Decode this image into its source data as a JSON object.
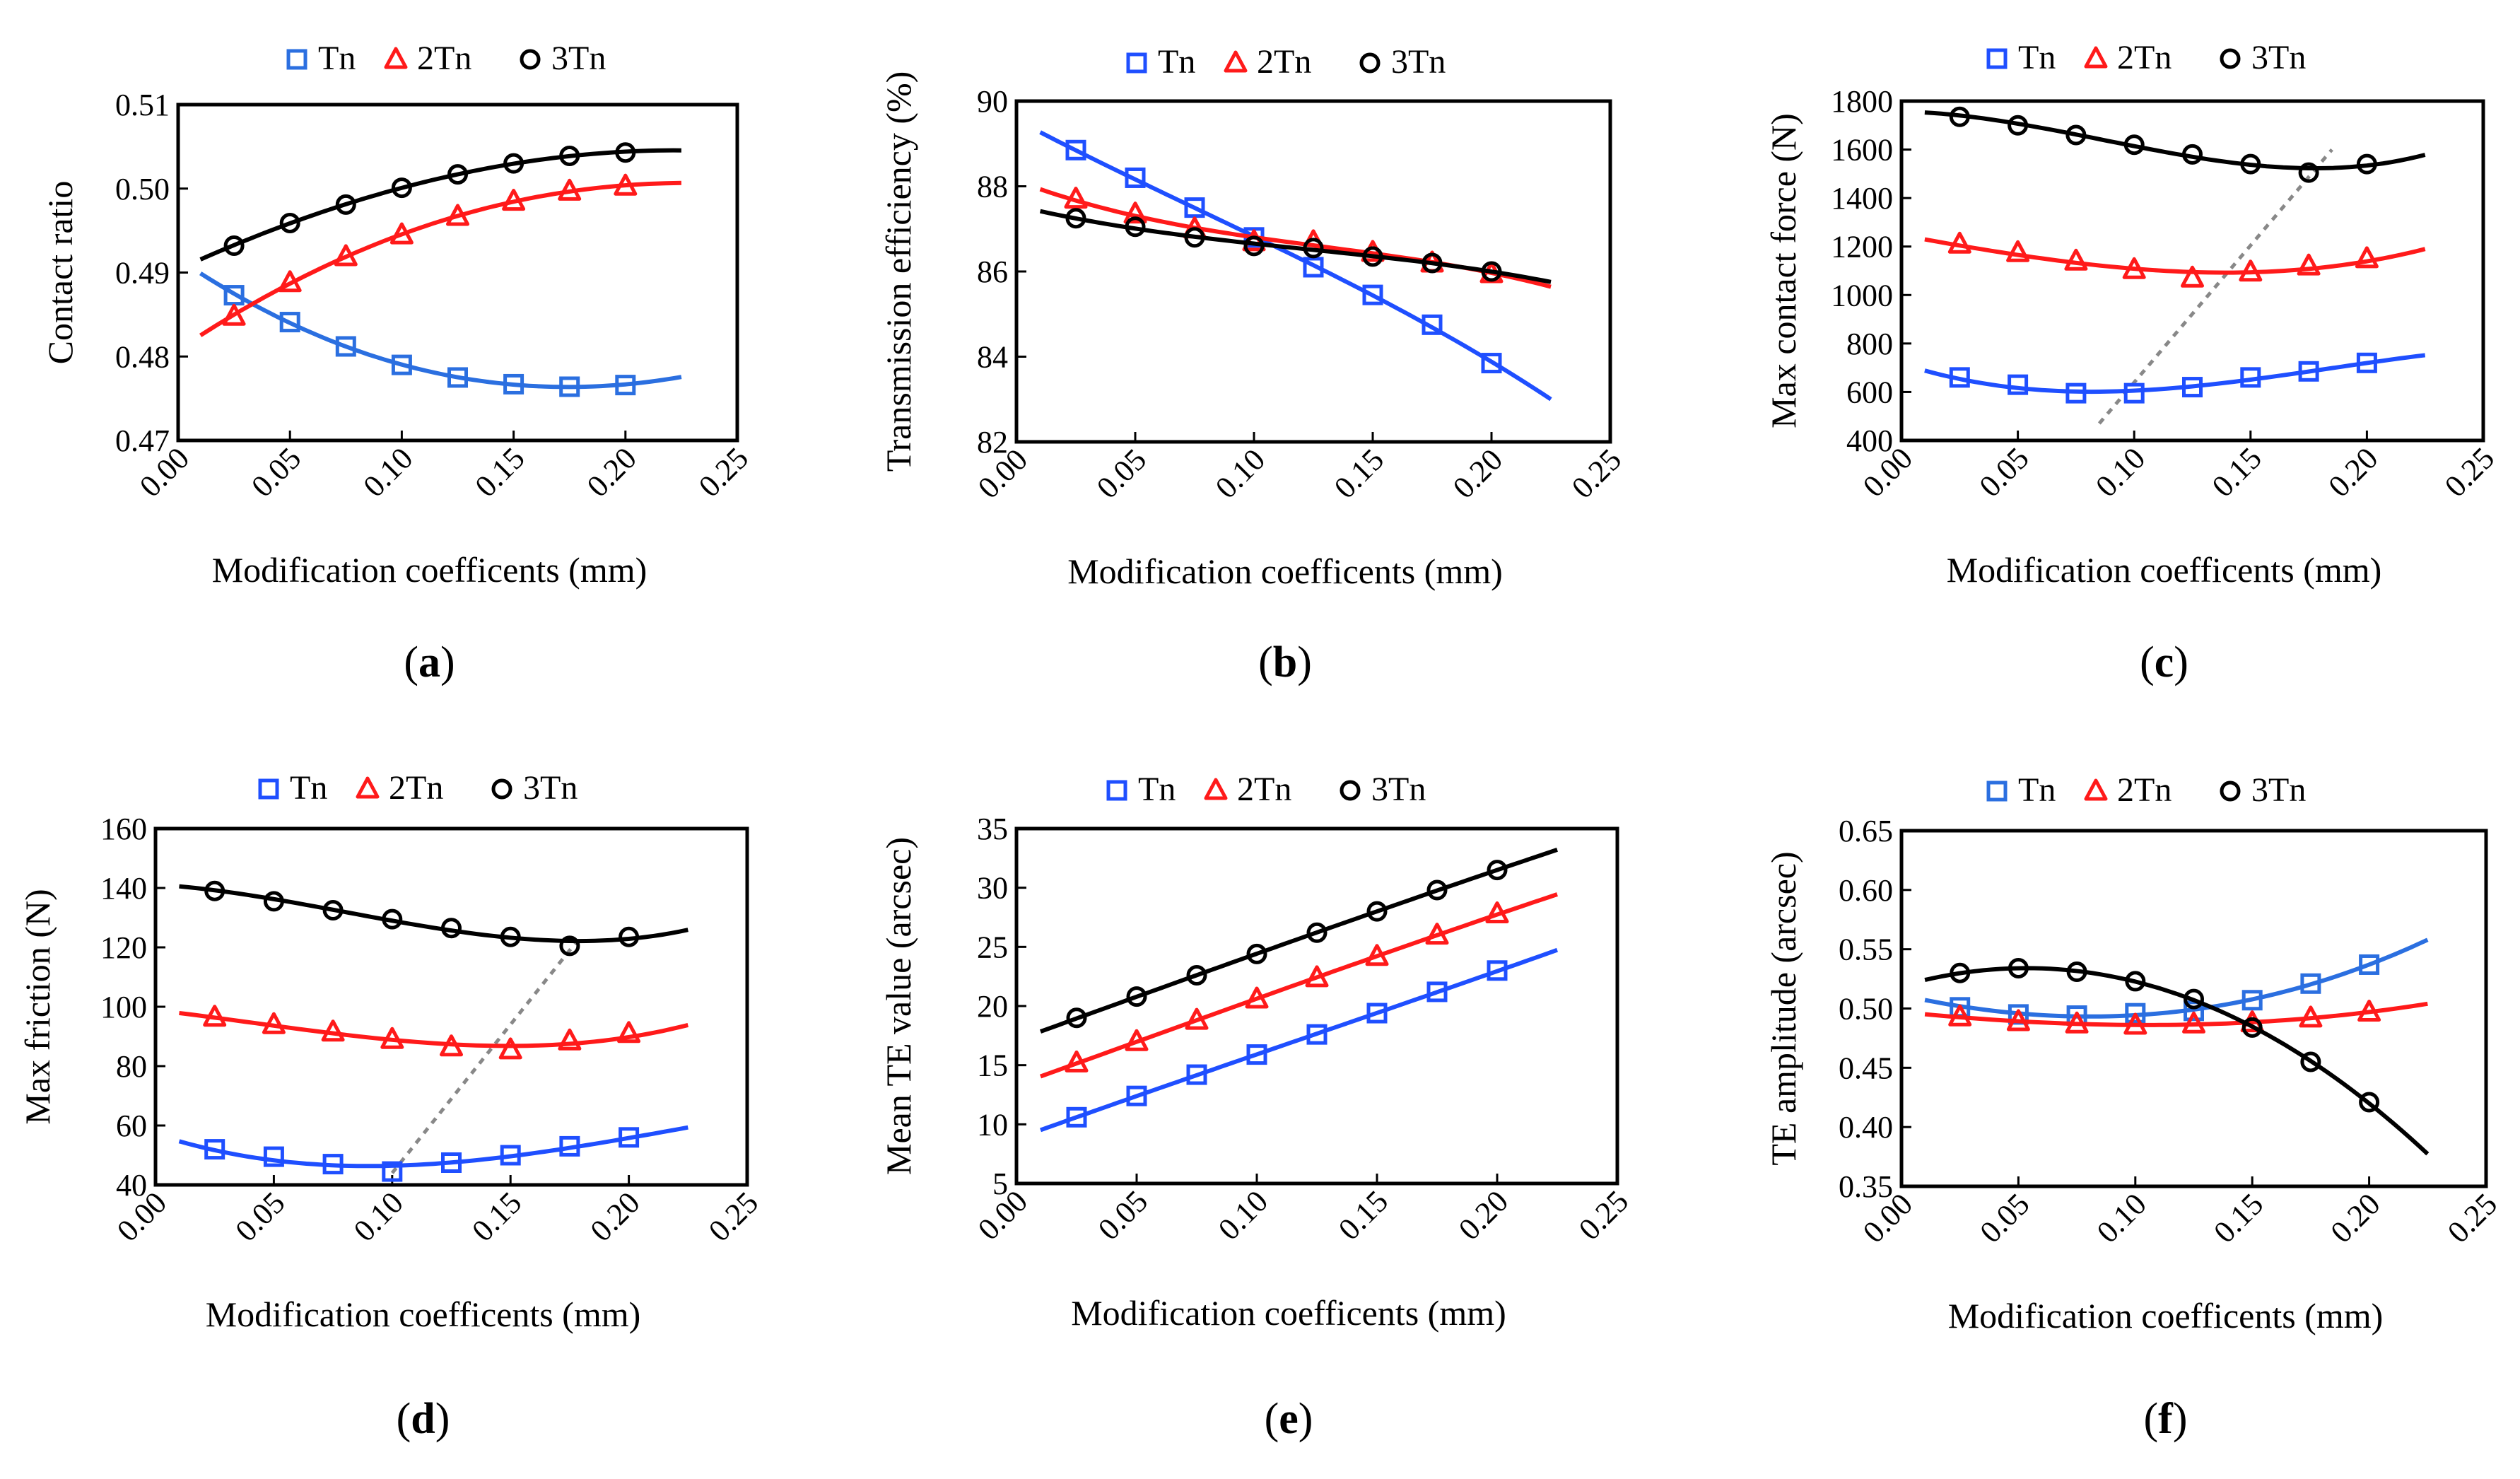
{
  "colors": {
    "Tn": "#1f4fff",
    "Tn_alt": "#2b6fe0",
    "2Tn": "#ff1a1a",
    "3Tn": "#000000",
    "guide": "#888888"
  },
  "legend": [
    "Tn",
    "2Tn",
    "3Tn"
  ],
  "chart_data": [
    {
      "id": "a",
      "label": "(a)",
      "type": "line",
      "xlabel": "Modification coefficents (mm)",
      "ylabel": "Contact ratio",
      "xlim": [
        0,
        0.25
      ],
      "ylim": [
        0.47,
        0.51
      ],
      "xticks": [
        "0.00",
        "0.05",
        "0.10",
        "0.15",
        "0.20",
        "0.25"
      ],
      "yticks": [
        "0.47",
        "0.48",
        "0.49",
        "0.50",
        "0.51"
      ],
      "series": [
        {
          "name": "Tn",
          "color_key": "Tn_alt",
          "marker": "square",
          "x": [
            0.025,
            0.05,
            0.075,
            0.1,
            0.125,
            0.15,
            0.175,
            0.2
          ],
          "values": [
            0.4873,
            0.4841,
            0.4812,
            0.479,
            0.4775,
            0.4767,
            0.4764,
            0.4766
          ],
          "curve_x": [
            0.01,
            0.225
          ],
          "curve": [
            0.49,
            0.4776
          ]
        },
        {
          "name": "2Tn",
          "color_key": "2Tn",
          "marker": "triangle",
          "x": [
            0.025,
            0.05,
            0.075,
            0.1,
            0.125,
            0.15,
            0.175,
            0.2
          ],
          "values": [
            0.4848,
            0.4888,
            0.4919,
            0.4945,
            0.4967,
            0.4985,
            0.4997,
            0.5003
          ],
          "curve_x": [
            0.01,
            0.225
          ],
          "curve": [
            0.4826,
            0.5007
          ]
        },
        {
          "name": "3Tn",
          "color_key": "3Tn",
          "marker": "circle",
          "x": [
            0.025,
            0.05,
            0.075,
            0.1,
            0.125,
            0.15,
            0.175,
            0.2
          ],
          "values": [
            0.4932,
            0.4959,
            0.4981,
            0.5001,
            0.5017,
            0.503,
            0.5039,
            0.5043
          ],
          "curve_x": [
            0.01,
            0.225
          ],
          "curve": [
            0.4916,
            0.5046
          ]
        }
      ]
    },
    {
      "id": "b",
      "label": "(b)",
      "type": "line",
      "xlabel": "Modification coefficents (mm)",
      "ylabel": "Transmission efficiency (%)",
      "xlim": [
        0,
        0.25
      ],
      "ylim": [
        82,
        90
      ],
      "xticks": [
        "0.00",
        "0.05",
        "0.10",
        "0.15",
        "0.20",
        "0.25"
      ],
      "yticks": [
        "82",
        "84",
        "86",
        "88",
        "90"
      ],
      "series": [
        {
          "name": "Tn",
          "color_key": "Tn",
          "marker": "square",
          "x": [
            0.025,
            0.05,
            0.075,
            0.1,
            0.125,
            0.15,
            0.175,
            0.2
          ],
          "values": [
            88.85,
            88.2,
            87.5,
            86.8,
            86.1,
            85.45,
            84.75,
            83.85
          ],
          "curve_x": [
            0.01,
            0.225
          ],
          "curve": [
            89.25,
            83.0
          ]
        },
        {
          "name": "2Tn",
          "color_key": "2Tn",
          "marker": "triangle",
          "x": [
            0.025,
            0.05,
            0.075,
            0.1,
            0.125,
            0.15,
            0.175,
            0.2
          ],
          "values": [
            87.7,
            87.35,
            87.0,
            86.7,
            86.7,
            86.45,
            86.2,
            85.95
          ],
          "curve_x": [
            0.01,
            0.225
          ],
          "curve": [
            87.9,
            85.65
          ]
        },
        {
          "name": "3Tn",
          "color_key": "3Tn",
          "marker": "circle",
          "x": [
            0.025,
            0.05,
            0.075,
            0.1,
            0.125,
            0.15,
            0.175,
            0.2
          ],
          "values": [
            87.25,
            87.05,
            86.8,
            86.6,
            86.55,
            86.35,
            86.2,
            86.0
          ],
          "curve_x": [
            0.01,
            0.225
          ],
          "curve": [
            87.4,
            85.75
          ]
        }
      ]
    },
    {
      "id": "c",
      "label": "(c)",
      "type": "line",
      "xlabel": "Modification coefficents (mm)",
      "ylabel": "Max contact force (N)",
      "xlim": [
        0,
        0.25
      ],
      "ylim": [
        400,
        1800
      ],
      "xticks": [
        "0.00",
        "0.05",
        "0.10",
        "0.15",
        "0.20",
        "0.25"
      ],
      "yticks": [
        "400",
        "600",
        "800",
        "1000",
        "1200",
        "1400",
        "1600",
        "1800"
      ],
      "guide": {
        "from": [
          0.085,
          470
        ],
        "to": [
          0.185,
          1600
        ]
      },
      "series": [
        {
          "name": "Tn",
          "color_key": "Tn",
          "marker": "square",
          "x": [
            0.025,
            0.05,
            0.075,
            0.1,
            0.125,
            0.15,
            0.175,
            0.2
          ],
          "values": [
            660,
            630,
            595,
            595,
            620,
            660,
            685,
            720
          ],
          "curve_x": [
            0.01,
            0.225
          ],
          "curve": [
            680,
            750
          ]
        },
        {
          "name": "2Tn",
          "color_key": "2Tn",
          "marker": "triangle",
          "x": [
            0.025,
            0.05,
            0.075,
            0.1,
            0.125,
            0.15,
            0.175,
            0.2
          ],
          "values": [
            1210,
            1175,
            1140,
            1105,
            1070,
            1095,
            1120,
            1150
          ],
          "curve_x": [
            0.01,
            0.225
          ],
          "curve": [
            1220,
            1180
          ]
        },
        {
          "name": "3Tn",
          "color_key": "3Tn",
          "marker": "circle",
          "x": [
            0.025,
            0.05,
            0.075,
            0.1,
            0.125,
            0.15,
            0.175,
            0.2
          ],
          "values": [
            1735,
            1700,
            1660,
            1620,
            1580,
            1540,
            1505,
            1540
          ],
          "curve_x": [
            0.01,
            0.225
          ],
          "curve": [
            1760,
            1580
          ]
        }
      ]
    },
    {
      "id": "d",
      "label": "(d)",
      "type": "line",
      "xlabel": "Modification coefficents (mm)",
      "ylabel": "Max friction (N)",
      "xlim": [
        0,
        0.25
      ],
      "ylim": [
        40,
        160
      ],
      "xticks": [
        "0.00",
        "0.05",
        "0.10",
        "0.15",
        "0.20",
        "0.25"
      ],
      "yticks": [
        "40",
        "60",
        "80",
        "100",
        "120",
        "140",
        "160"
      ],
      "guide": {
        "from": [
          0.1,
          44
        ],
        "to": [
          0.178,
          122
        ]
      },
      "series": [
        {
          "name": "Tn",
          "color_key": "Tn",
          "marker": "square",
          "x": [
            0.025,
            0.05,
            0.075,
            0.1,
            0.125,
            0.15,
            0.175,
            0.2
          ],
          "values": [
            52,
            49.5,
            47,
            44.5,
            47.5,
            50,
            53,
            56
          ],
          "curve_x": [
            0.01,
            0.225
          ],
          "curve": [
            54,
            59
          ]
        },
        {
          "name": "2Tn",
          "color_key": "2Tn",
          "marker": "triangle",
          "x": [
            0.025,
            0.05,
            0.075,
            0.1,
            0.125,
            0.15,
            0.175,
            0.2
          ],
          "values": [
            96.5,
            94,
            91.5,
            89,
            86.5,
            85.5,
            88.5,
            91
          ],
          "curve_x": [
            0.01,
            0.225
          ],
          "curve": [
            97.5,
            93
          ]
        },
        {
          "name": "3Tn",
          "color_key": "3Tn",
          "marker": "circle",
          "x": [
            0.025,
            0.05,
            0.075,
            0.1,
            0.125,
            0.15,
            0.175,
            0.2
          ],
          "values": [
            139,
            135.5,
            132.5,
            129.5,
            126.5,
            123.5,
            120.5,
            123.5
          ],
          "curve_x": [
            0.01,
            0.225
          ],
          "curve": [
            141,
            126
          ]
        }
      ]
    },
    {
      "id": "e",
      "label": "(e)",
      "type": "line",
      "xlabel": "Modification coefficents (mm)",
      "ylabel": "Mean TE value (arcsec)",
      "xlim": [
        0,
        0.25
      ],
      "ylim": [
        5,
        35
      ],
      "xticks": [
        "0.00",
        "0.05",
        "0.10",
        "0.15",
        "0.20",
        "0.25"
      ],
      "yticks": [
        "5",
        "10",
        "15",
        "20",
        "25",
        "30",
        "35"
      ],
      "series": [
        {
          "name": "Tn",
          "color_key": "Tn",
          "marker": "square",
          "x": [
            0.025,
            0.05,
            0.075,
            0.1,
            0.125,
            0.15,
            0.175,
            0.2
          ],
          "values": [
            10.6,
            12.4,
            14.2,
            15.9,
            17.6,
            19.4,
            21.2,
            23.0
          ],
          "curve_x": [
            0.01,
            0.225
          ],
          "curve": [
            9.5,
            24.7
          ]
        },
        {
          "name": "2Tn",
          "color_key": "2Tn",
          "marker": "triangle",
          "x": [
            0.025,
            0.05,
            0.075,
            0.1,
            0.125,
            0.15,
            0.175,
            0.2
          ],
          "values": [
            15.2,
            17.0,
            18.8,
            20.6,
            22.4,
            24.2,
            26.0,
            27.8
          ],
          "curve_x": [
            0.01,
            0.225
          ],
          "curve": [
            14.0,
            29.4
          ]
        },
        {
          "name": "3Tn",
          "color_key": "3Tn",
          "marker": "circle",
          "x": [
            0.025,
            0.05,
            0.075,
            0.1,
            0.125,
            0.15,
            0.175,
            0.2
          ],
          "values": [
            19.0,
            20.8,
            22.6,
            24.4,
            26.2,
            28.0,
            29.8,
            31.5
          ],
          "curve_x": [
            0.01,
            0.225
          ],
          "curve": [
            17.8,
            33.2
          ]
        }
      ]
    },
    {
      "id": "f",
      "label": "(f)",
      "type": "line",
      "xlabel": "Modification coefficents (mm)",
      "ylabel": "TE amplitude (arcsec)",
      "xlim": [
        0,
        0.25
      ],
      "ylim": [
        0.35,
        0.65
      ],
      "xticks": [
        "0.00",
        "0.05",
        "0.10",
        "0.15",
        "0.20",
        "0.25"
      ],
      "yticks": [
        "0.35",
        "0.40",
        "0.45",
        "0.50",
        "0.55",
        "0.60",
        "0.65"
      ],
      "series": [
        {
          "name": "Tn",
          "color_key": "Tn_alt",
          "marker": "square",
          "x": [
            0.025,
            0.05,
            0.075,
            0.1,
            0.125,
            0.15,
            0.175,
            0.2
          ],
          "values": [
            0.501,
            0.495,
            0.494,
            0.496,
            0.498,
            0.507,
            0.521,
            0.537
          ],
          "curve_x": [
            0.01,
            0.225
          ],
          "curve": [
            0.508,
            0.558
          ]
        },
        {
          "name": "2Tn",
          "color_key": "2Tn",
          "marker": "triangle",
          "x": [
            0.025,
            0.05,
            0.075,
            0.1,
            0.125,
            0.15,
            0.175,
            0.2
          ],
          "values": [
            0.493,
            0.489,
            0.487,
            0.486,
            0.487,
            0.488,
            0.492,
            0.497
          ],
          "curve_x": [
            0.01,
            0.225
          ],
          "curve": [
            0.495,
            0.504
          ]
        },
        {
          "name": "3Tn",
          "color_key": "3Tn",
          "marker": "circle",
          "x": [
            0.025,
            0.05,
            0.075,
            0.1,
            0.125,
            0.15,
            0.175,
            0.2
          ],
          "values": [
            0.53,
            0.534,
            0.531,
            0.523,
            0.508,
            0.484,
            0.455,
            0.421
          ],
          "curve_x": [
            0.01,
            0.225
          ],
          "curve": [
            0.524,
            0.377
          ]
        }
      ]
    }
  ]
}
